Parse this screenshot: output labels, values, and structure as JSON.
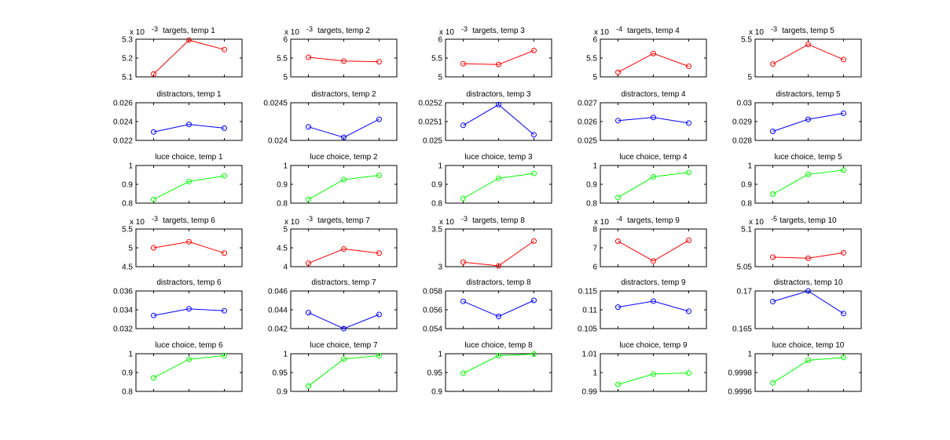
{
  "figure": {
    "background": "#ffffff",
    "axes_color": "#000000"
  },
  "colors": {
    "targets": "#ff0000",
    "distractors": "#0000ff",
    "luce": "#00ff00"
  },
  "chart_data": [
    {
      "type": "line",
      "title": "targets, temp 1",
      "x": [
        1,
        2,
        3
      ],
      "values": [
        5.115,
        5.295,
        5.245
      ],
      "color": "#ff0000",
      "ylim": [
        5.1,
        5.3
      ],
      "yticks": [
        "5.1",
        "5.2",
        "5.3"
      ],
      "ytick_values": [
        5.1,
        5.2,
        5.3
      ],
      "multiplier": "x 10",
      "multiplier_exp": "-3",
      "marker": "circle"
    },
    {
      "type": "line",
      "title": "targets, temp 2",
      "x": [
        1,
        2,
        3
      ],
      "values": [
        5.52,
        5.42,
        5.4
      ],
      "color": "#ff0000",
      "ylim": [
        5,
        6
      ],
      "yticks": [
        "5",
        "5.5",
        "6"
      ],
      "ytick_values": [
        5,
        5.5,
        6
      ],
      "multiplier": "x 10",
      "multiplier_exp": "-3",
      "marker": "circle"
    },
    {
      "type": "line",
      "title": "targets, temp 3",
      "x": [
        1,
        2,
        3
      ],
      "values": [
        5.35,
        5.33,
        5.7
      ],
      "color": "#ff0000",
      "ylim": [
        5,
        6
      ],
      "yticks": [
        "5",
        "5.5",
        "6"
      ],
      "ytick_values": [
        5,
        5.5,
        6
      ],
      "multiplier": "x 10",
      "multiplier_exp": "-3",
      "marker": "circle"
    },
    {
      "type": "line",
      "title": "targets, temp 4",
      "x": [
        1,
        2,
        3
      ],
      "values": [
        5.12,
        5.62,
        5.28
      ],
      "color": "#ff0000",
      "ylim": [
        5,
        6
      ],
      "yticks": [
        "5",
        "5.5",
        "6"
      ],
      "ytick_values": [
        5,
        5.5,
        6
      ],
      "multiplier": "x 10",
      "multiplier_exp": "-4",
      "marker": "circle"
    },
    {
      "type": "line",
      "title": "targets, temp 5",
      "x": [
        1,
        2,
        3
      ],
      "values": [
        5.17,
        5.43,
        5.23
      ],
      "color": "#ff0000",
      "ylim": [
        5,
        5.5
      ],
      "yticks": [
        "5",
        "5.5"
      ],
      "ytick_values": [
        5,
        5.5
      ],
      "multiplier": "x 10",
      "multiplier_exp": "-3",
      "marker": "circle"
    },
    {
      "type": "line",
      "title": "distractors, temp 1",
      "x": [
        1,
        2,
        3
      ],
      "values": [
        0.0229,
        0.0237,
        0.0233
      ],
      "color": "#0000ff",
      "ylim": [
        0.022,
        0.026
      ],
      "yticks": [
        "0.022",
        "0.024",
        "0.026"
      ],
      "ytick_values": [
        0.022,
        0.024,
        0.026
      ],
      "marker": "circle"
    },
    {
      "type": "line",
      "title": "distractors, temp 2",
      "x": [
        1,
        2,
        3
      ],
      "values": [
        0.02418,
        0.02404,
        0.02428
      ],
      "color": "#0000ff",
      "ylim": [
        0.024,
        0.0245
      ],
      "yticks": [
        "0.024",
        "0.0245"
      ],
      "ytick_values": [
        0.024,
        0.0245
      ],
      "marker": "circle"
    },
    {
      "type": "line",
      "title": "distractors, temp 3",
      "x": [
        1,
        2,
        3
      ],
      "values": [
        0.02508,
        0.02519,
        0.02503
      ],
      "color": "#0000ff",
      "ylim": [
        0.025,
        0.0252
      ],
      "yticks": [
        "0.025",
        "0.0251",
        "0.0252"
      ],
      "ytick_values": [
        0.025,
        0.0251,
        0.0252
      ],
      "marker": "circle"
    },
    {
      "type": "line",
      "title": "distractors, temp 4",
      "x": [
        1,
        2,
        3
      ],
      "values": [
        0.02605,
        0.02622,
        0.02592
      ],
      "color": "#0000ff",
      "ylim": [
        0.025,
        0.027
      ],
      "yticks": [
        "0.025",
        "0.026",
        "0.027"
      ],
      "ytick_values": [
        0.025,
        0.026,
        0.027
      ],
      "marker": "circle"
    },
    {
      "type": "line",
      "title": "distractors, temp 5",
      "x": [
        1,
        2,
        3
      ],
      "values": [
        0.02848,
        0.02912,
        0.02944
      ],
      "color": "#0000ff",
      "ylim": [
        0.028,
        0.03
      ],
      "yticks": [
        "0.028",
        "0.029",
        "0.03"
      ],
      "ytick_values": [
        0.028,
        0.029,
        0.03
      ],
      "marker": "circle"
    },
    {
      "type": "line",
      "title": "luce choice, temp 1",
      "x": [
        1,
        2,
        3
      ],
      "values": [
        0.82,
        0.915,
        0.945
      ],
      "color": "#00ff00",
      "ylim": [
        0.8,
        1
      ],
      "yticks": [
        "0.8",
        "0.9",
        "1"
      ],
      "ytick_values": [
        0.8,
        0.9,
        1
      ],
      "marker": "circle"
    },
    {
      "type": "line",
      "title": "luce choice, temp 2",
      "x": [
        1,
        2,
        3
      ],
      "values": [
        0.82,
        0.925,
        0.948
      ],
      "color": "#00ff00",
      "ylim": [
        0.8,
        1
      ],
      "yticks": [
        "0.8",
        "0.9",
        "1"
      ],
      "ytick_values": [
        0.8,
        0.9,
        1
      ],
      "marker": "circle"
    },
    {
      "type": "line",
      "title": "luce choice, temp 3",
      "x": [
        1,
        2,
        3
      ],
      "values": [
        0.825,
        0.932,
        0.958
      ],
      "color": "#00ff00",
      "ylim": [
        0.8,
        1
      ],
      "yticks": [
        "0.8",
        "0.9",
        "1"
      ],
      "ytick_values": [
        0.8,
        0.9,
        1
      ],
      "marker": "circle"
    },
    {
      "type": "line",
      "title": "luce choice, temp 4",
      "x": [
        1,
        2,
        3
      ],
      "values": [
        0.83,
        0.94,
        0.963
      ],
      "color": "#00ff00",
      "ylim": [
        0.8,
        1
      ],
      "yticks": [
        "0.8",
        "0.9",
        "1"
      ],
      "ytick_values": [
        0.8,
        0.9,
        1
      ],
      "marker": "circle"
    },
    {
      "type": "line",
      "title": "luce choice, temp 5",
      "x": [
        1,
        2,
        3
      ],
      "values": [
        0.848,
        0.953,
        0.975
      ],
      "color": "#00ff00",
      "ylim": [
        0.8,
        1
      ],
      "yticks": [
        "0.8",
        "0.9",
        "1"
      ],
      "ytick_values": [
        0.8,
        0.9,
        1
      ],
      "marker": "circle"
    },
    {
      "type": "line",
      "title": "targets, temp 6",
      "x": [
        1,
        2,
        3
      ],
      "values": [
        5.0,
        5.16,
        4.86
      ],
      "color": "#ff0000",
      "ylim": [
        4.5,
        5.5
      ],
      "yticks": [
        "4.5",
        "5",
        "5.5"
      ],
      "ytick_values": [
        4.5,
        5,
        5.5
      ],
      "multiplier": "x 10",
      "multiplier_exp": "-3",
      "marker": "circle"
    },
    {
      "type": "line",
      "title": "targets, temp 7",
      "x": [
        1,
        2,
        3
      ],
      "values": [
        4.09,
        4.47,
        4.36
      ],
      "color": "#ff0000",
      "ylim": [
        4,
        5
      ],
      "yticks": [
        "4",
        "4.5",
        "5"
      ],
      "ytick_values": [
        4,
        4.5,
        5
      ],
      "multiplier": "x 10",
      "multiplier_exp": "-3",
      "marker": "circle"
    },
    {
      "type": "line",
      "title": "targets, temp 8",
      "x": [
        1,
        2,
        3
      ],
      "values": [
        3.06,
        3.01,
        3.34
      ],
      "color": "#ff0000",
      "ylim": [
        3,
        3.5
      ],
      "yticks": [
        "3",
        "3.5"
      ],
      "ytick_values": [
        3,
        3.5
      ],
      "multiplier": "x 10",
      "multiplier_exp": "-3",
      "marker": "circle"
    },
    {
      "type": "line",
      "title": "targets, temp 9",
      "x": [
        1,
        2,
        3
      ],
      "values": [
        7.35,
        6.3,
        7.4
      ],
      "color": "#ff0000",
      "ylim": [
        6,
        8
      ],
      "yticks": [
        "6",
        "7",
        "8"
      ],
      "ytick_values": [
        6,
        7,
        8
      ],
      "multiplier": "x 10",
      "multiplier_exp": "-4",
      "marker": "circle"
    },
    {
      "type": "line",
      "title": "targets, temp 10",
      "x": [
        1,
        2,
        3
      ],
      "values": [
        5.0626,
        5.0612,
        5.0684
      ],
      "color": "#ff0000",
      "ylim": [
        5.05,
        5.1
      ],
      "yticks": [
        "5.05",
        "5.1"
      ],
      "ytick_values": [
        5.05,
        5.1
      ],
      "multiplier": "x 10",
      "multiplier_exp": "-5",
      "marker": "circle"
    },
    {
      "type": "line",
      "title": "distractors, temp 6",
      "x": [
        1,
        2,
        3
      ],
      "values": [
        0.0334,
        0.0341,
        0.0339
      ],
      "color": "#0000ff",
      "ylim": [
        0.032,
        0.036
      ],
      "yticks": [
        "0.032",
        "0.034",
        "0.036"
      ],
      "ytick_values": [
        0.032,
        0.034,
        0.036
      ],
      "marker": "circle"
    },
    {
      "type": "line",
      "title": "distractors, temp 7",
      "x": [
        1,
        2,
        3
      ],
      "values": [
        0.0437,
        0.042,
        0.0435
      ],
      "color": "#0000ff",
      "ylim": [
        0.042,
        0.046
      ],
      "yticks": [
        "0.042",
        "0.044",
        "0.046"
      ],
      "ytick_values": [
        0.042,
        0.044,
        0.046
      ],
      "marker": "circle"
    },
    {
      "type": "line",
      "title": "distractors, temp 8",
      "x": [
        1,
        2,
        3
      ],
      "values": [
        0.0569,
        0.0553,
        0.057
      ],
      "color": "#0000ff",
      "ylim": [
        0.054,
        0.058
      ],
      "yticks": [
        "0.054",
        "0.056",
        "0.058"
      ],
      "ytick_values": [
        0.054,
        0.056,
        0.058
      ],
      "marker": "circle"
    },
    {
      "type": "line",
      "title": "distractors, temp 9",
      "x": [
        1,
        2,
        3
      ],
      "values": [
        0.1107,
        0.1123,
        0.1096
      ],
      "color": "#0000ff",
      "ylim": [
        0.105,
        0.115
      ],
      "yticks": [
        "0.105",
        "0.11",
        "0.115"
      ],
      "ytick_values": [
        0.105,
        0.11,
        0.115
      ],
      "marker": "circle"
    },
    {
      "type": "line",
      "title": "distractors, temp 10",
      "x": [
        1,
        2,
        3
      ],
      "values": [
        0.1686,
        0.17,
        0.167
      ],
      "color": "#0000ff",
      "ylim": [
        0.165,
        0.17
      ],
      "yticks": [
        "0.165",
        "0.17"
      ],
      "ytick_values": [
        0.165,
        0.17
      ],
      "marker": "circle"
    },
    {
      "type": "line",
      "title": "luce choice, temp 6",
      "x": [
        1,
        2,
        3
      ],
      "values": [
        0.872,
        0.97,
        0.99
      ],
      "color": "#00ff00",
      "ylim": [
        0.8,
        1
      ],
      "yticks": [
        "0.8",
        "0.9",
        "1"
      ],
      "ytick_values": [
        0.8,
        0.9,
        1
      ],
      "marker": "circle"
    },
    {
      "type": "line",
      "title": "luce choice, temp 7",
      "x": [
        1,
        2,
        3
      ],
      "values": [
        0.914,
        0.986,
        0.995
      ],
      "color": "#00ff00",
      "ylim": [
        0.9,
        1
      ],
      "yticks": [
        "0.9",
        "0.95",
        "1"
      ],
      "ytick_values": [
        0.9,
        0.95,
        1
      ],
      "marker": "circle"
    },
    {
      "type": "line",
      "title": "luce choice, temp 8",
      "x": [
        1,
        2,
        3
      ],
      "values": [
        0.948,
        0.995,
        0.999
      ],
      "color": "#00ff00",
      "ylim": [
        0.9,
        1
      ],
      "yticks": [
        "0.9",
        "0.95",
        "1"
      ],
      "ytick_values": [
        0.9,
        0.95,
        1
      ],
      "marker": "circle"
    },
    {
      "type": "line",
      "title": "luce choice, temp 9",
      "x": [
        1,
        2,
        3
      ],
      "values": [
        0.9937,
        0.9992,
        0.9998
      ],
      "color": "#00ff00",
      "ylim": [
        0.99,
        1.01
      ],
      "yticks": [
        "0.99",
        "1",
        "1.01"
      ],
      "ytick_values": [
        0.99,
        1,
        1.01
      ],
      "marker": "circle"
    },
    {
      "type": "line",
      "title": "luce choice, temp 10",
      "x": [
        1,
        2,
        3
      ],
      "values": [
        0.99969,
        0.99993,
        0.99996
      ],
      "color": "#00ff00",
      "ylim": [
        0.9996,
        1
      ],
      "yticks": [
        "0.9996",
        "0.9998",
        "1"
      ],
      "ytick_values": [
        0.9996,
        0.9998,
        1
      ],
      "marker": "circle"
    }
  ]
}
